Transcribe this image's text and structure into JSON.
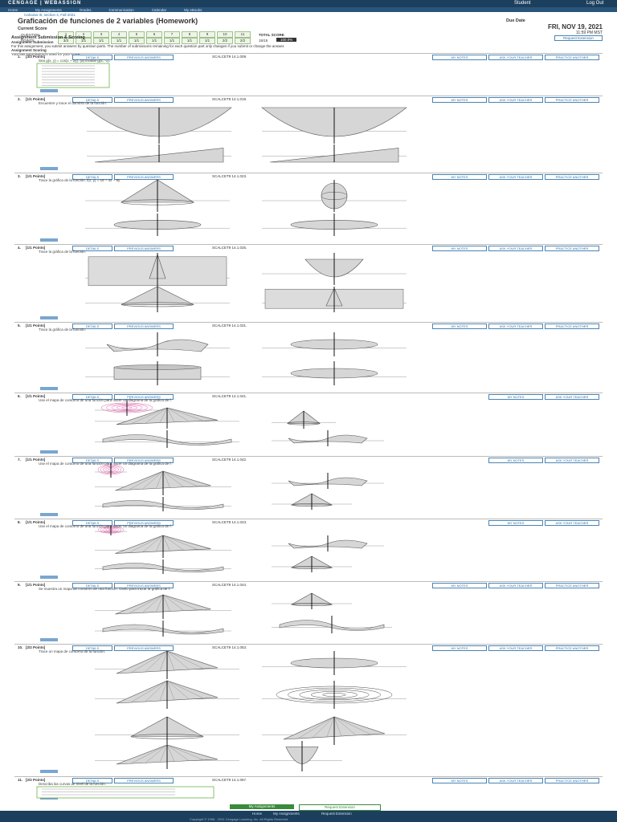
{
  "header": {
    "brand": "CENGAGE | WEBASSIGN",
    "user": "Student",
    "logout": "Log Out"
  },
  "nav": [
    "Home",
    "My Assignments",
    "Grades",
    "Communication",
    "Calendar",
    "My eBooks"
  ],
  "course": "Calculus III, section 4, Fall 2021",
  "title": "Graficación de funciones de 2 variables (Homework)",
  "score": {
    "label": "Current Score",
    "question_label": "QUESTION",
    "points_label": "POINTS",
    "questions": [
      "1",
      "2",
      "3",
      "4",
      "5",
      "6",
      "7",
      "8",
      "9",
      "10",
      "11"
    ],
    "points": [
      "3/3",
      "1/1",
      "1/1",
      "1/1",
      "1/1",
      "1/1",
      "1/1",
      "1/1",
      "1/1",
      "2/2",
      "2/2"
    ],
    "total_label": "TOTAL SCORE",
    "total": "15/15",
    "percent": "100.0%"
  },
  "due": {
    "label": "Due Date",
    "date": "FRI, NOV 19, 2021",
    "time": "11:59 PM MST",
    "extension": "Request Extension"
  },
  "submission": {
    "heading": "Assignment Submission & Scoring",
    "sub_title": "Assignment Submission",
    "sub_text": "For this assignment, you submit answers by question parts. The number of submissions remaining for each question part only changes if you submit or change the answer.",
    "scoring_title": "Assignment Scoring",
    "scoring_text": "Your last submission is used for your score."
  },
  "buttons": {
    "details": "DETAILS",
    "previous": "PREVIOUS ANSWERS",
    "notes": "MY NOTES",
    "ask": "ASK YOUR TEACHER",
    "practice": "PRACTICE ANOTHER"
  },
  "questions": [
    {
      "number": "1.",
      "points": "[3/3 Points]",
      "code": "SCALCET9 14.1.009.",
      "practice": true,
      "prompt": "Sea g(x, y) = cos(x + 2y). (a) Evalúe g(2, -1)."
    },
    {
      "number": "2.",
      "points": "[1/1 Points]",
      "code": "SCALCET9 14.1.019.",
      "practice": true,
      "prompt": "Encuentre y trace el dominio de la función."
    },
    {
      "number": "3.",
      "points": "[1/1 Points]",
      "code": "SCALCET9 14.1.023.",
      "practice": true,
      "prompt": "Trace la gráfica de la función. f(x, y) = 16 − 4x − 8y"
    },
    {
      "number": "4.",
      "points": "[1/1 Points]",
      "code": "SCALCET9 14.1.025.",
      "practice": true,
      "prompt": "Trace la gráfica de la función."
    },
    {
      "number": "5.",
      "points": "[1/1 Points]",
      "code": "SCALCET9 14.1.031.",
      "practice": true,
      "prompt": "Trace la gráfica de la función."
    },
    {
      "number": "6.",
      "points": "[1/1 Points]",
      "code": "SCALCET9 14.1.041.",
      "practice": false,
      "prompt": "Use el mapa de contorno de una función para hacer un diagrama de la gráfica de f."
    },
    {
      "number": "7.",
      "points": "[1/1 Points]",
      "code": "SCALCET9 14.1.042.",
      "practice": false,
      "prompt": "Use el mapa de contorno de una función para hacer un diagrama de la gráfica de f."
    },
    {
      "number": "8.",
      "points": "[1/1 Points]",
      "code": "SCALCET9 14.1.043.",
      "practice": false,
      "prompt": "Use el mapa de contorno de una función para hacer un diagrama de la gráfica de f."
    },
    {
      "number": "9.",
      "points": "[1/1 Points]",
      "code": "SCALCET9 14.1.044.",
      "practice": true,
      "prompt": "Se muestra un mapa de contorno de una función. Úselo para trazar la gráfica de f."
    },
    {
      "number": "10.",
      "points": "[2/2 Points]",
      "code": "SCALCET9 14.1.053.",
      "practice": true,
      "prompt": "Trace un mapa de contorno de la función."
    },
    {
      "number": "11.",
      "points": "[2/2 Points]",
      "code": "SCALCET9 14.1.067.",
      "practice": true,
      "prompt": "Describa las curvas de nivel de la función."
    }
  ],
  "footer": {
    "home": "Home",
    "assignments": "My Assignments",
    "extension": "Request Extension",
    "copyright": "Copyright © 1998 - 2021 Cengage Learning, Inc. All Rights Reserved"
  }
}
